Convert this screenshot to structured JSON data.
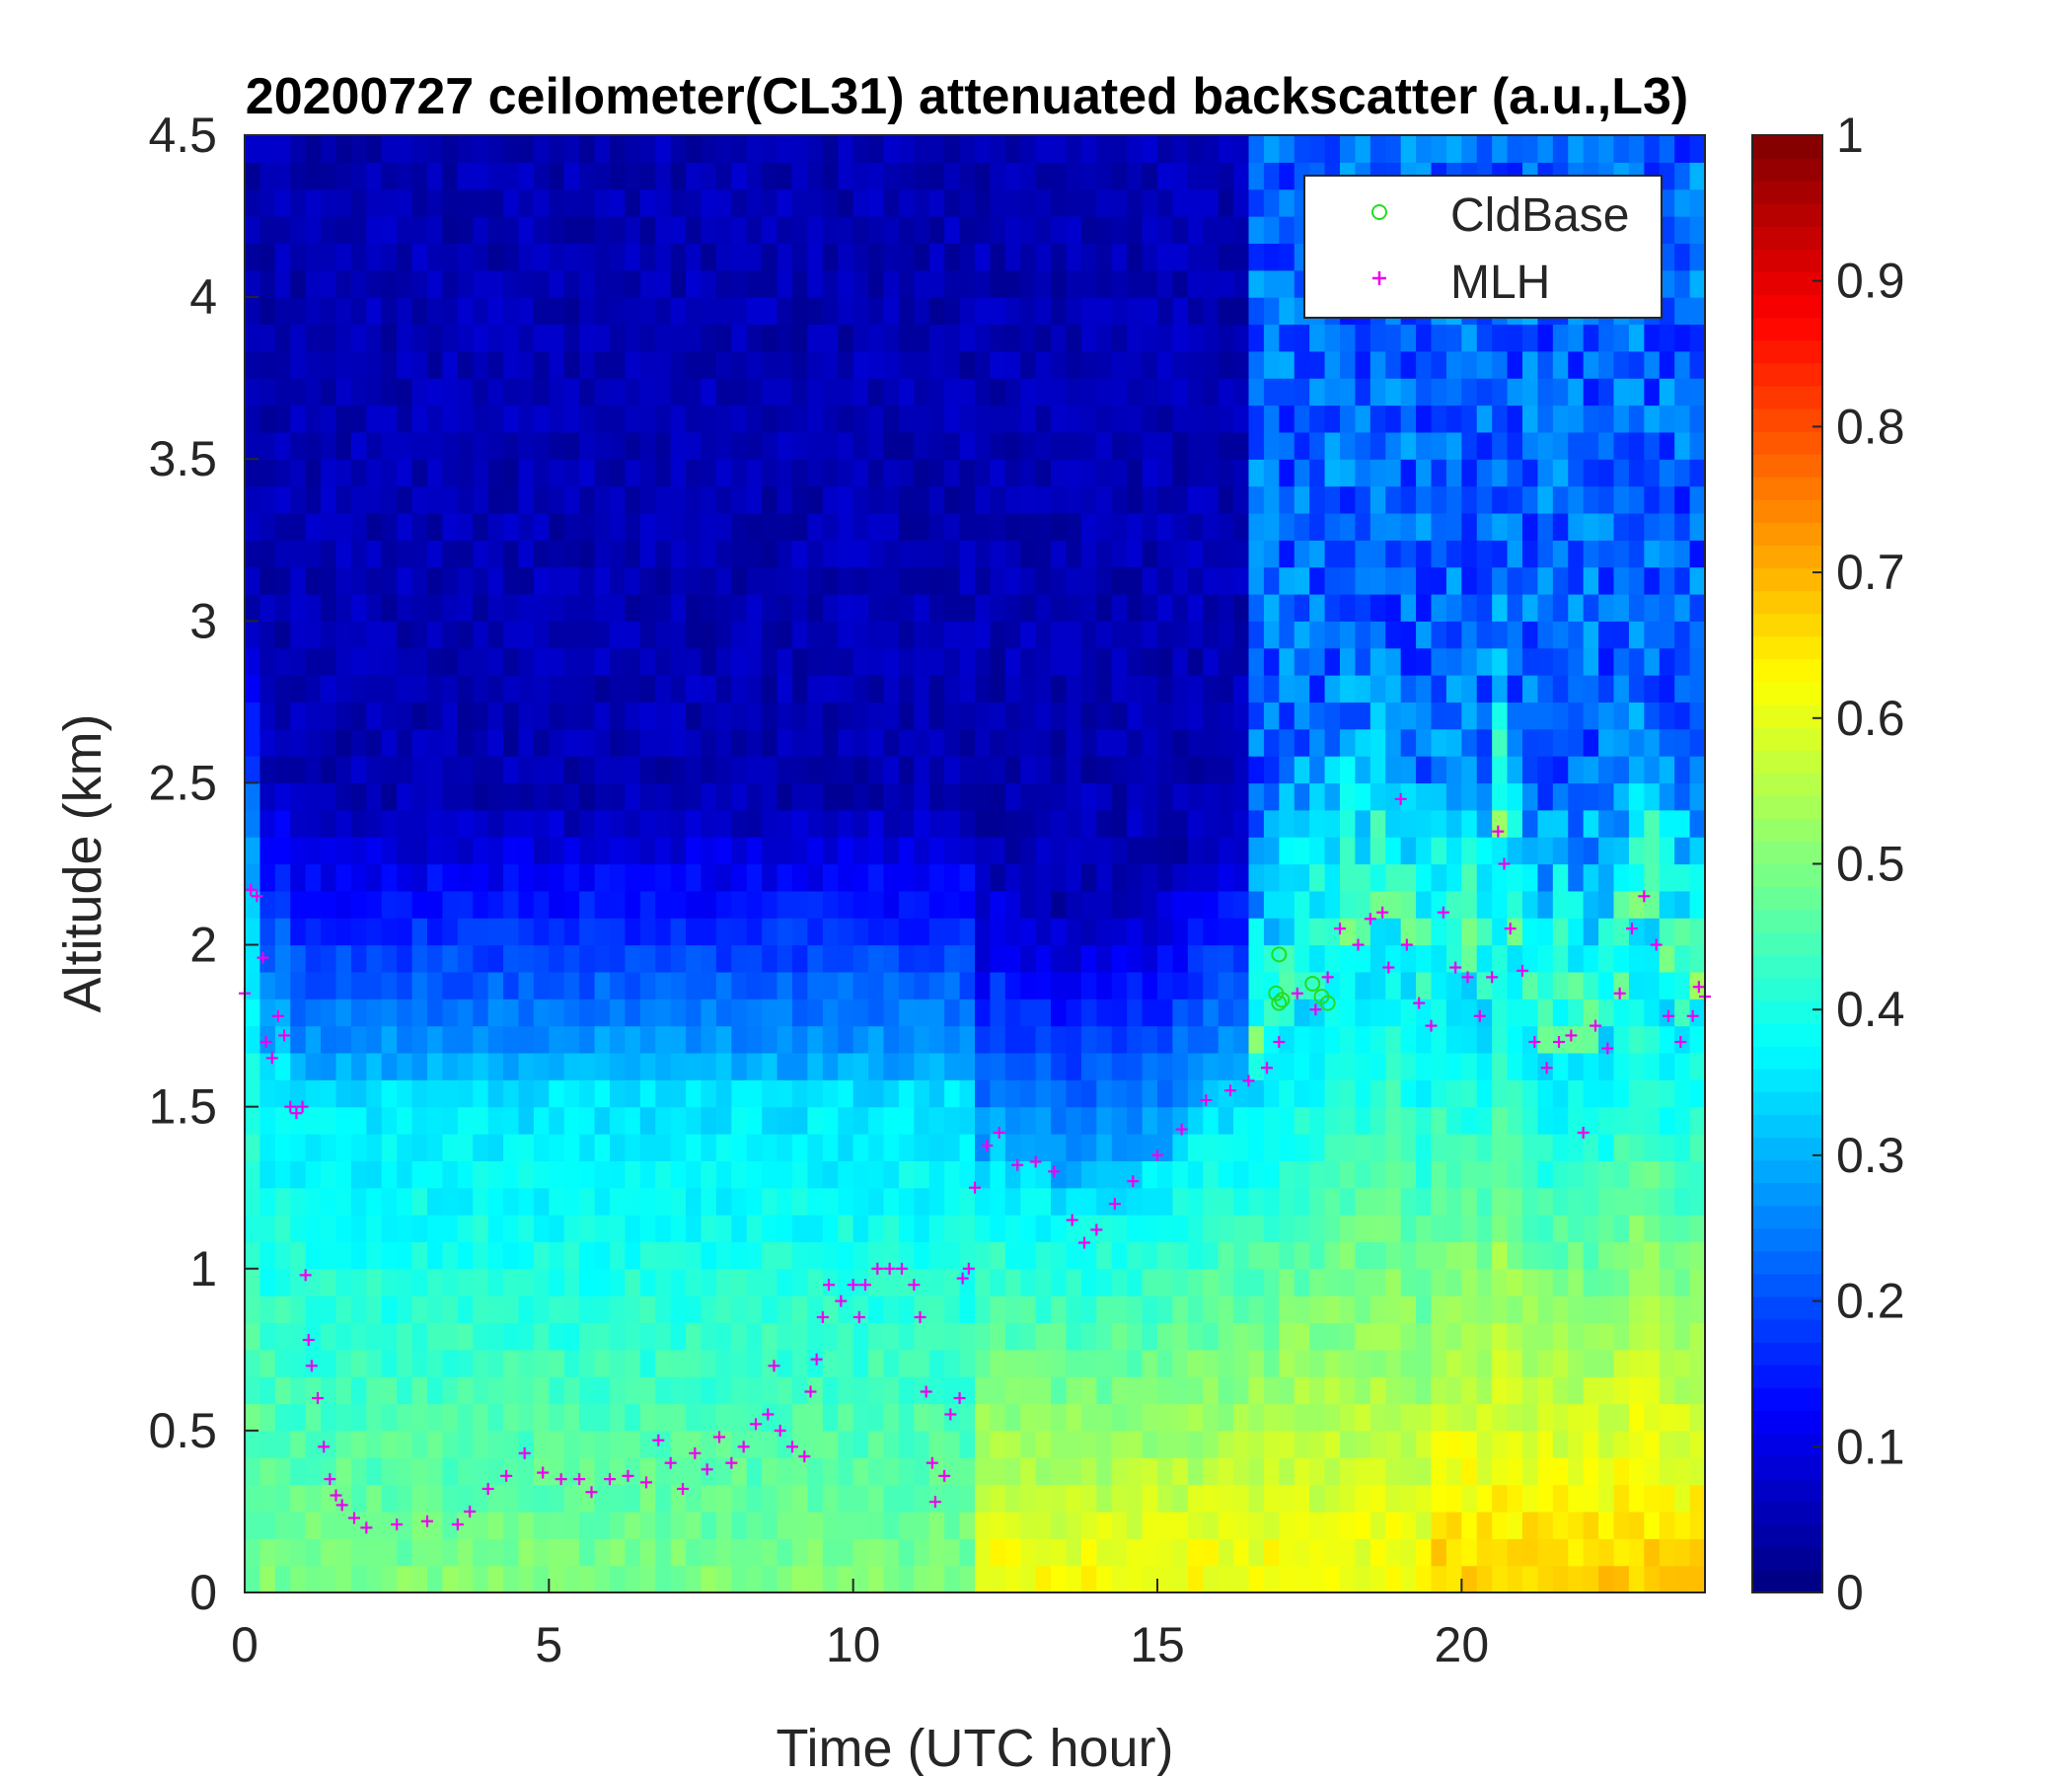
{
  "chart_data": {
    "type": "heatmap",
    "title": "20200727 ceilometer(CL31) attenuated backscatter (a.u.,L3)",
    "xlabel": "Time (UTC hour)",
    "ylabel": "Altitude (km)",
    "xlim": [
      0,
      24
    ],
    "ylim": [
      0,
      4.5
    ],
    "xticks": [
      0,
      5,
      10,
      15,
      20
    ],
    "yticks": [
      0,
      0.5,
      1,
      1.5,
      2,
      2.5,
      3,
      3.5,
      4,
      4.5
    ],
    "colorbar": {
      "colormap": "jet",
      "clim": [
        0,
        1
      ],
      "ticks": [
        0,
        0.1,
        0.2,
        0.3,
        0.4,
        0.5,
        0.6,
        0.7,
        0.8,
        0.9,
        1
      ]
    },
    "legend": {
      "position": "top-right",
      "entries": [
        {
          "label": "CldBase",
          "marker": "circle",
          "color": "#22dd22"
        },
        {
          "label": "MLH",
          "marker": "plus",
          "color": "#ee00ee"
        }
      ]
    },
    "series": [
      {
        "name": "CldBase",
        "marker": "circle",
        "color": "#22dd22",
        "points": [
          [
            17.0,
            1.97
          ],
          [
            16.95,
            1.85
          ],
          [
            17.0,
            1.82
          ],
          [
            17.05,
            1.83
          ],
          [
            17.55,
            1.88
          ],
          [
            17.7,
            1.84
          ],
          [
            17.8,
            1.82
          ]
        ]
      },
      {
        "name": "MLH",
        "marker": "plus",
        "color": "#ee00ee",
        "points": [
          [
            0.0,
            1.85
          ],
          [
            0.1,
            2.17
          ],
          [
            0.2,
            2.15
          ],
          [
            0.3,
            1.96
          ],
          [
            0.35,
            1.7
          ],
          [
            0.45,
            1.65
          ],
          [
            0.55,
            1.78
          ],
          [
            0.65,
            1.72
          ],
          [
            0.75,
            1.5
          ],
          [
            0.85,
            1.48
          ],
          [
            0.95,
            1.5
          ],
          [
            1.0,
            0.98
          ],
          [
            1.05,
            0.78
          ],
          [
            1.1,
            0.7
          ],
          [
            1.2,
            0.6
          ],
          [
            1.3,
            0.45
          ],
          [
            1.4,
            0.35
          ],
          [
            1.5,
            0.3
          ],
          [
            1.6,
            0.27
          ],
          [
            1.8,
            0.23
          ],
          [
            2.0,
            0.2
          ],
          [
            2.5,
            0.21
          ],
          [
            3.0,
            0.22
          ],
          [
            3.5,
            0.21
          ],
          [
            3.7,
            0.25
          ],
          [
            4.0,
            0.32
          ],
          [
            4.3,
            0.36
          ],
          [
            4.6,
            0.43
          ],
          [
            4.9,
            0.37
          ],
          [
            5.2,
            0.35
          ],
          [
            5.5,
            0.35
          ],
          [
            5.7,
            0.31
          ],
          [
            6.0,
            0.35
          ],
          [
            6.3,
            0.36
          ],
          [
            6.6,
            0.34
          ],
          [
            6.8,
            0.47
          ],
          [
            7.0,
            0.4
          ],
          [
            7.2,
            0.32
          ],
          [
            7.4,
            0.43
          ],
          [
            7.6,
            0.38
          ],
          [
            7.8,
            0.48
          ],
          [
            8.0,
            0.4
          ],
          [
            8.2,
            0.45
          ],
          [
            8.4,
            0.52
          ],
          [
            8.6,
            0.55
          ],
          [
            8.7,
            0.7
          ],
          [
            8.8,
            0.5
          ],
          [
            9.0,
            0.45
          ],
          [
            9.2,
            0.42
          ],
          [
            9.3,
            0.62
          ],
          [
            9.4,
            0.72
          ],
          [
            9.5,
            0.85
          ],
          [
            9.6,
            0.95
          ],
          [
            9.8,
            0.9
          ],
          [
            10.0,
            0.95
          ],
          [
            10.1,
            0.85
          ],
          [
            10.2,
            0.95
          ],
          [
            10.4,
            1.0
          ],
          [
            10.6,
            1.0
          ],
          [
            10.8,
            1.0
          ],
          [
            11.0,
            0.95
          ],
          [
            11.1,
            0.85
          ],
          [
            11.2,
            0.62
          ],
          [
            11.3,
            0.4
          ],
          [
            11.35,
            0.28
          ],
          [
            11.5,
            0.36
          ],
          [
            11.6,
            0.55
          ],
          [
            11.75,
            0.6
          ],
          [
            11.8,
            0.97
          ],
          [
            11.9,
            1.0
          ],
          [
            12.0,
            1.25
          ],
          [
            12.2,
            1.38
          ],
          [
            12.4,
            1.42
          ],
          [
            12.7,
            1.32
          ],
          [
            13.0,
            1.33
          ],
          [
            13.3,
            1.3
          ],
          [
            13.6,
            1.15
          ],
          [
            13.8,
            1.08
          ],
          [
            14.0,
            1.12
          ],
          [
            14.3,
            1.2
          ],
          [
            14.6,
            1.27
          ],
          [
            15.0,
            1.35
          ],
          [
            15.4,
            1.43
          ],
          [
            15.8,
            1.52
          ],
          [
            16.2,
            1.55
          ],
          [
            16.5,
            1.58
          ],
          [
            16.8,
            1.62
          ],
          [
            17.0,
            1.7
          ],
          [
            17.3,
            1.85
          ],
          [
            17.6,
            1.8
          ],
          [
            17.8,
            1.9
          ],
          [
            18.0,
            2.05
          ],
          [
            18.3,
            2.0
          ],
          [
            18.5,
            2.08
          ],
          [
            18.7,
            2.1
          ],
          [
            18.8,
            1.93
          ],
          [
            19.0,
            2.45
          ],
          [
            19.1,
            2.0
          ],
          [
            19.3,
            1.82
          ],
          [
            19.5,
            1.75
          ],
          [
            19.7,
            2.1
          ],
          [
            19.9,
            1.93
          ],
          [
            20.1,
            1.9
          ],
          [
            20.3,
            1.78
          ],
          [
            20.5,
            1.9
          ],
          [
            20.6,
            2.35
          ],
          [
            20.7,
            2.25
          ],
          [
            20.8,
            2.05
          ],
          [
            21.0,
            1.92
          ],
          [
            21.2,
            1.7
          ],
          [
            21.4,
            1.62
          ],
          [
            21.6,
            1.7
          ],
          [
            21.8,
            1.72
          ],
          [
            22.0,
            1.42
          ],
          [
            22.2,
            1.75
          ],
          [
            22.4,
            1.68
          ],
          [
            22.6,
            1.85
          ],
          [
            22.8,
            2.05
          ],
          [
            23.0,
            2.15
          ],
          [
            23.2,
            2.0
          ],
          [
            23.4,
            1.78
          ],
          [
            23.6,
            1.7
          ],
          [
            23.8,
            1.78
          ],
          [
            23.9,
            1.87
          ],
          [
            24.0,
            1.84
          ]
        ]
      }
    ]
  }
}
